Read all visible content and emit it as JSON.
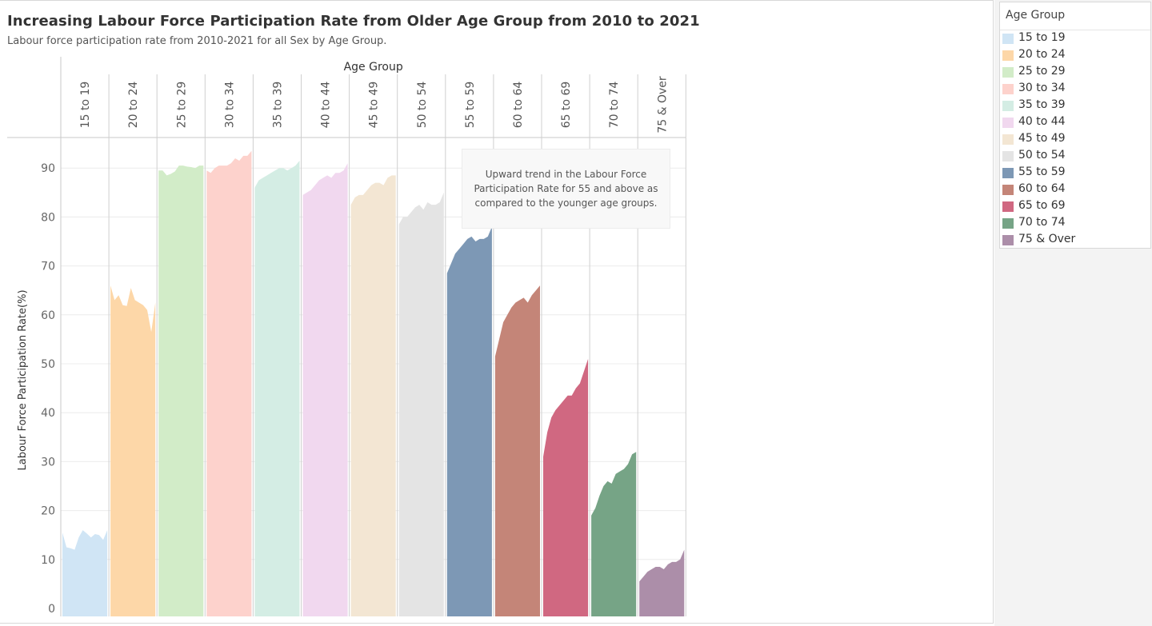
{
  "title": "Increasing Labour Force Participation Rate from Older Age Group from 2010 to 2021",
  "subtitle": "Labour force participation rate from 2010-2021 for all Sex by Age Group.",
  "annotation": "Upward trend in the Labour Force Participation Rate for 55 and above as compared to the younger age groups.",
  "legend": {
    "title": "Age Group",
    "items": [
      {
        "label": "15 to 19",
        "color": "#d0e5f5"
      },
      {
        "label": "20 to 24",
        "color": "#fdd7a8"
      },
      {
        "label": "25 to 29",
        "color": "#d2ecc8"
      },
      {
        "label": "30 to 34",
        "color": "#fdd2cc"
      },
      {
        "label": "35 to 39",
        "color": "#d4ede4"
      },
      {
        "label": "40 to 44",
        "color": "#f1d8ef"
      },
      {
        "label": "45 to 49",
        "color": "#f3e6d3"
      },
      {
        "label": "50 to 54",
        "color": "#e4e4e4"
      },
      {
        "label": "55 to 59",
        "color": "#7d98b5"
      },
      {
        "label": "60 to 64",
        "color": "#c48578"
      },
      {
        "label": "65 to 69",
        "color": "#d06881"
      },
      {
        "label": "70 to 74",
        "color": "#76a486"
      },
      {
        "label": "75 & Over",
        "color": "#ac8ea9"
      }
    ]
  },
  "chart_data": {
    "type": "area",
    "title": "Increasing Labour Force Participation Rate from Older Age Group from 2010 to 2021",
    "column_header": "Age Group",
    "ylabel": "Labour Force Participation Rate(%)",
    "ylim": [
      0,
      95
    ],
    "yticks": [
      0,
      10,
      20,
      30,
      40,
      50,
      60,
      70,
      80,
      90
    ],
    "grid": true,
    "legend_position": "right",
    "series": [
      {
        "name": "15 to 19",
        "color": "#d0e5f5",
        "values": [
          15.5,
          12.5,
          12.3,
          12.0,
          14.5,
          16.0,
          15.3,
          14.5,
          15.2,
          15.0,
          14.0,
          16.0
        ]
      },
      {
        "name": "20 to 24",
        "color": "#fdd7a8",
        "values": [
          66.0,
          63.0,
          64.0,
          62.0,
          61.8,
          65.5,
          63.0,
          62.5,
          62.0,
          61.0,
          56.5,
          62.5
        ]
      },
      {
        "name": "25 to 29",
        "color": "#d2ecc8",
        "values": [
          89.5,
          89.5,
          88.5,
          88.8,
          89.3,
          90.5,
          90.5,
          90.3,
          90.2,
          90.0,
          90.5,
          90.5
        ]
      },
      {
        "name": "30 to 34",
        "color": "#fdd2cc",
        "values": [
          89.5,
          89.0,
          90.0,
          90.5,
          90.5,
          90.5,
          91.0,
          92.0,
          91.5,
          92.5,
          92.5,
          93.5
        ]
      },
      {
        "name": "35 to 39",
        "color": "#d4ede4",
        "values": [
          86.0,
          87.5,
          88.0,
          88.5,
          89.0,
          89.5,
          90.0,
          90.0,
          89.5,
          90.0,
          90.5,
          91.5
        ]
      },
      {
        "name": "40 to 44",
        "color": "#f1d8ef",
        "values": [
          84.5,
          85.0,
          85.5,
          86.5,
          87.5,
          88.0,
          88.5,
          88.0,
          89.0,
          89.0,
          89.5,
          91.0
        ]
      },
      {
        "name": "45 to 49",
        "color": "#f3e6d3",
        "values": [
          82.5,
          84.0,
          84.5,
          84.5,
          85.5,
          86.5,
          87.0,
          87.0,
          86.5,
          88.0,
          88.5,
          88.5
        ]
      },
      {
        "name": "50 to 54",
        "color": "#e4e4e4",
        "values": [
          78.5,
          80.0,
          80.0,
          81.0,
          82.0,
          82.5,
          81.5,
          83.0,
          82.5,
          82.5,
          83.0,
          85.0
        ]
      },
      {
        "name": "55 to 59",
        "color": "#7d98b5",
        "values": [
          68.5,
          70.5,
          72.5,
          73.5,
          74.5,
          75.5,
          76.0,
          75.0,
          75.5,
          75.5,
          76.0,
          78.0
        ]
      },
      {
        "name": "60 to 64",
        "color": "#c48578",
        "values": [
          51.5,
          55.0,
          58.5,
          60.0,
          61.5,
          62.5,
          63.0,
          63.5,
          62.5,
          64.0,
          65.0,
          66.0
        ]
      },
      {
        "name": "65 to 69",
        "color": "#d06881",
        "values": [
          31.0,
          36.0,
          39.0,
          40.5,
          41.5,
          42.5,
          43.5,
          43.5,
          45.0,
          46.0,
          48.5,
          51.0
        ]
      },
      {
        "name": "70 to 74",
        "color": "#76a486",
        "values": [
          19.0,
          20.5,
          23.0,
          25.0,
          26.0,
          25.5,
          27.5,
          28.0,
          28.5,
          29.5,
          31.5,
          32.0
        ]
      },
      {
        "name": "75 & Over",
        "color": "#ac8ea9",
        "values": [
          5.5,
          6.5,
          7.5,
          8.0,
          8.5,
          8.5,
          8.0,
          9.0,
          9.5,
          9.5,
          10.0,
          12.0
        ]
      }
    ]
  }
}
